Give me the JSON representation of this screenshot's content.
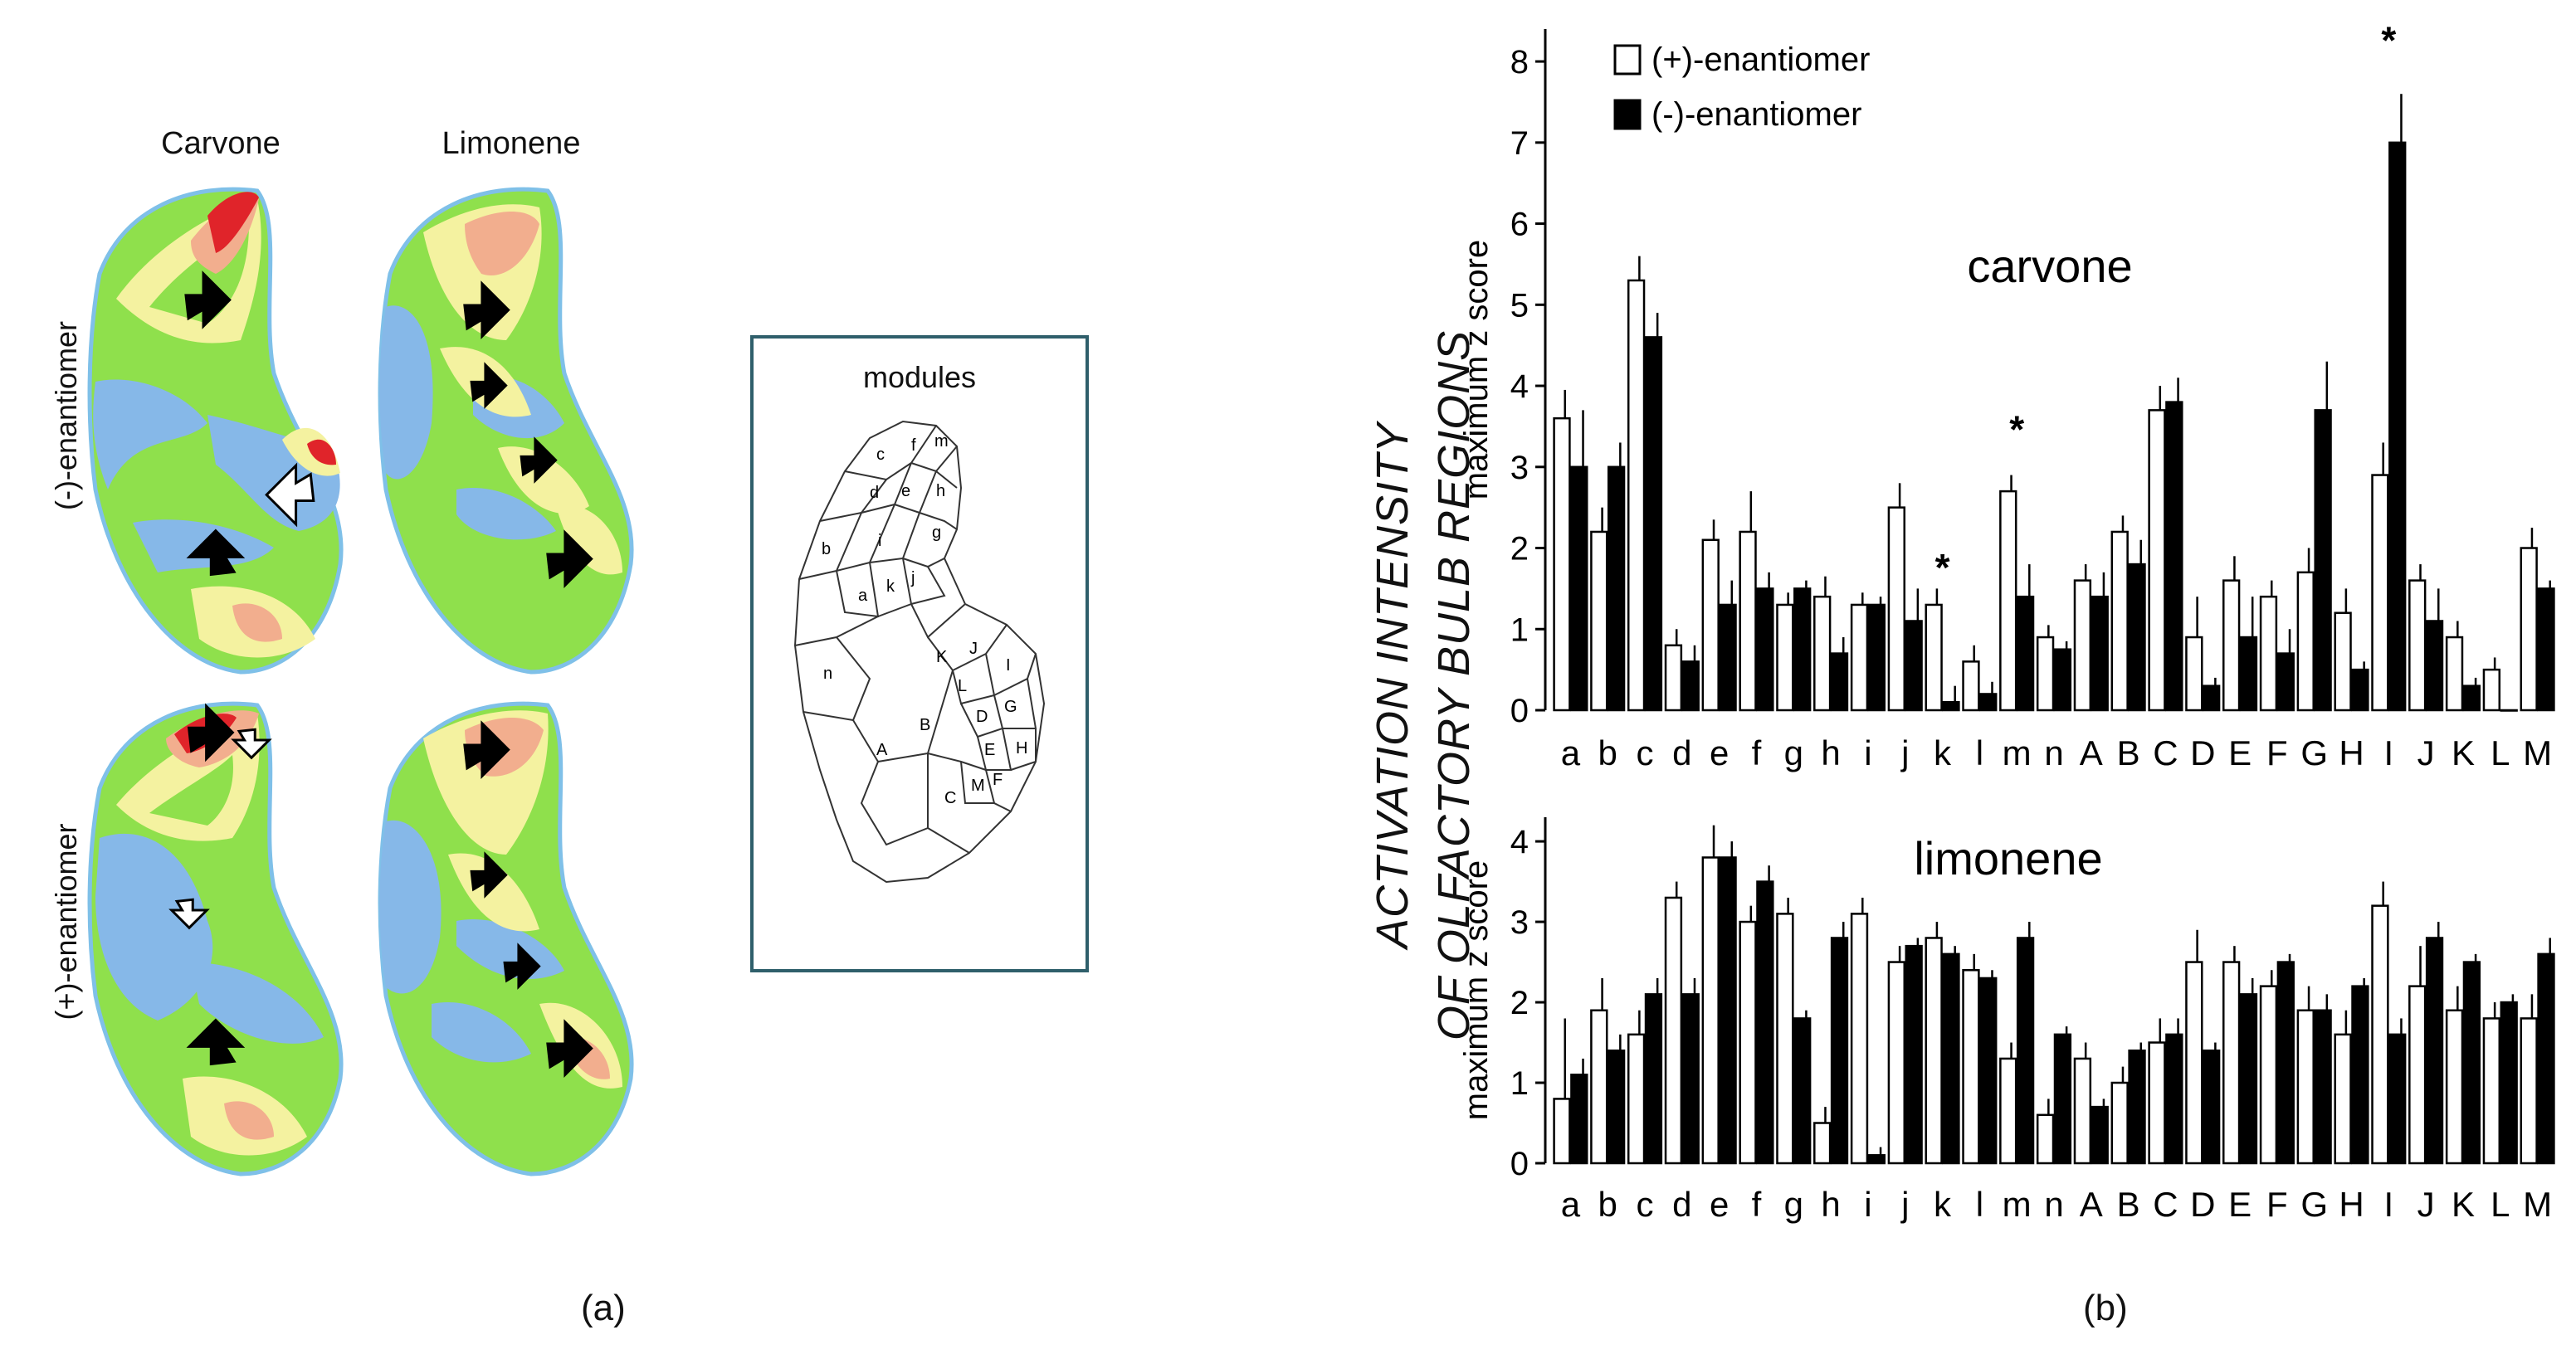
{
  "panel_a": {
    "col_titles": [
      "Carvone",
      "Limonene"
    ],
    "row_titles": [
      "(-)-enantiomer",
      "(+)-enantiomer"
    ],
    "modules_label": "modules",
    "module_letters": [
      "c",
      "f",
      "m",
      "d",
      "e",
      "h",
      "b",
      "g",
      "i",
      "j",
      "a",
      "k",
      "n",
      "K",
      "J",
      "I",
      "L",
      "G",
      "D",
      "E",
      "H",
      "F",
      "M",
      "B",
      "A",
      "C"
    ],
    "colors": {
      "blue": "#86b8e8",
      "green": "#8fe04c",
      "yellow": "#f4f2a0",
      "salmon": "#f2ae8e",
      "red": "#e0242a",
      "box": "#2f5f6b"
    }
  },
  "side_label": {
    "line1": "ACTIVATION INTENSITY",
    "line2": "OF OLFACTORY BULB REGIONS"
  },
  "fig_labels": {
    "a": "(a)",
    "b": "(b)"
  },
  "chart_data": [
    {
      "type": "bar",
      "title": "carvone",
      "ylabel": "maximum z score",
      "xlabel": "",
      "ylim": [
        0,
        8.4
      ],
      "yticks": [
        0,
        1,
        2,
        3,
        4,
        5,
        6,
        7,
        8
      ],
      "categories": [
        "a",
        "b",
        "c",
        "d",
        "e",
        "f",
        "g",
        "h",
        "i",
        "j",
        "k",
        "l",
        "m",
        "n",
        "A",
        "B",
        "C",
        "D",
        "E",
        "F",
        "G",
        "H",
        "I",
        "J",
        "K",
        "L",
        "M"
      ],
      "legend": [
        "(+)-enantiomer",
        "(-)-enantiomer"
      ],
      "series": [
        {
          "name": "(+)-enantiomer",
          "fill": "#ffffff",
          "values": [
            3.6,
            2.2,
            5.3,
            0.8,
            2.1,
            2.2,
            1.3,
            1.4,
            1.3,
            2.5,
            1.3,
            0.6,
            2.7,
            0.9,
            1.6,
            2.2,
            3.7,
            0.9,
            1.6,
            1.4,
            1.7,
            1.2,
            2.9,
            1.6,
            0.9,
            0.5,
            2.0
          ],
          "errors": [
            0.35,
            0.3,
            0.3,
            0.2,
            0.25,
            0.5,
            0.15,
            0.25,
            0.15,
            0.3,
            0.2,
            0.2,
            0.2,
            0.15,
            0.2,
            0.2,
            0.3,
            0.5,
            0.3,
            0.2,
            0.3,
            0.3,
            0.4,
            0.2,
            0.2,
            0.15,
            0.25
          ]
        },
        {
          "name": "(-)-enantiomer",
          "fill": "#000000",
          "values": [
            3.0,
            3.0,
            4.6,
            0.6,
            1.3,
            1.5,
            1.5,
            0.7,
            1.3,
            1.1,
            0.1,
            0.2,
            1.4,
            0.75,
            1.4,
            1.8,
            3.8,
            0.3,
            0.9,
            0.7,
            3.7,
            0.5,
            7.0,
            1.1,
            0.3,
            0.0,
            1.5
          ],
          "errors": [
            0.7,
            0.3,
            0.3,
            0.2,
            0.3,
            0.2,
            0.1,
            0.2,
            0.1,
            0.4,
            0.2,
            0.15,
            0.4,
            0.1,
            0.3,
            0.3,
            0.3,
            0.1,
            0.5,
            0.3,
            0.6,
            0.1,
            0.6,
            0.4,
            0.1,
            0.0,
            0.1
          ]
        }
      ],
      "annotations": [
        {
          "text": "*",
          "category": "k",
          "value": 1.7
        },
        {
          "text": "*",
          "category": "m",
          "value": 3.4
        },
        {
          "text": "*",
          "category": "I",
          "value": 8.2
        }
      ]
    },
    {
      "type": "bar",
      "title": "limonene",
      "ylabel": "maximum z score",
      "xlabel": "",
      "ylim": [
        0,
        4.3
      ],
      "yticks": [
        0,
        1,
        2,
        3,
        4
      ],
      "categories": [
        "a",
        "b",
        "c",
        "d",
        "e",
        "f",
        "g",
        "h",
        "i",
        "j",
        "k",
        "l",
        "m",
        "n",
        "A",
        "B",
        "C",
        "D",
        "E",
        "F",
        "G",
        "H",
        "I",
        "J",
        "K",
        "L",
        "M"
      ],
      "series": [
        {
          "name": "(+)-enantiomer",
          "fill": "#ffffff",
          "values": [
            0.8,
            1.9,
            1.6,
            3.3,
            3.8,
            3.0,
            3.1,
            0.5,
            3.1,
            2.5,
            2.8,
            2.4,
            1.3,
            0.6,
            1.3,
            1.0,
            1.5,
            2.5,
            2.5,
            2.2,
            1.9,
            1.6,
            3.2,
            2.2,
            1.9,
            1.8,
            1.8
          ],
          "errors": [
            1.0,
            0.4,
            0.3,
            0.2,
            0.4,
            0.2,
            0.2,
            0.2,
            0.2,
            0.2,
            0.2,
            0.2,
            0.2,
            0.2,
            0.2,
            0.2,
            0.3,
            0.4,
            0.2,
            0.2,
            0.3,
            0.3,
            0.3,
            0.5,
            0.3,
            0.2,
            0.3
          ]
        },
        {
          "name": "(-)-enantiomer",
          "fill": "#000000",
          "values": [
            1.1,
            1.4,
            2.1,
            2.1,
            3.8,
            3.5,
            1.8,
            2.8,
            0.1,
            2.7,
            2.6,
            2.3,
            2.8,
            1.6,
            0.7,
            1.4,
            1.6,
            1.4,
            2.1,
            2.5,
            1.9,
            2.2,
            1.6,
            2.8,
            2.5,
            2.0,
            2.6
          ],
          "errors": [
            0.2,
            0.2,
            0.2,
            0.2,
            0.2,
            0.2,
            0.1,
            0.2,
            0.1,
            0.1,
            0.1,
            0.1,
            0.2,
            0.1,
            0.1,
            0.1,
            0.2,
            0.1,
            0.2,
            0.1,
            0.2,
            0.1,
            0.2,
            0.2,
            0.1,
            0.1,
            0.2
          ]
        }
      ],
      "annotations": []
    }
  ]
}
